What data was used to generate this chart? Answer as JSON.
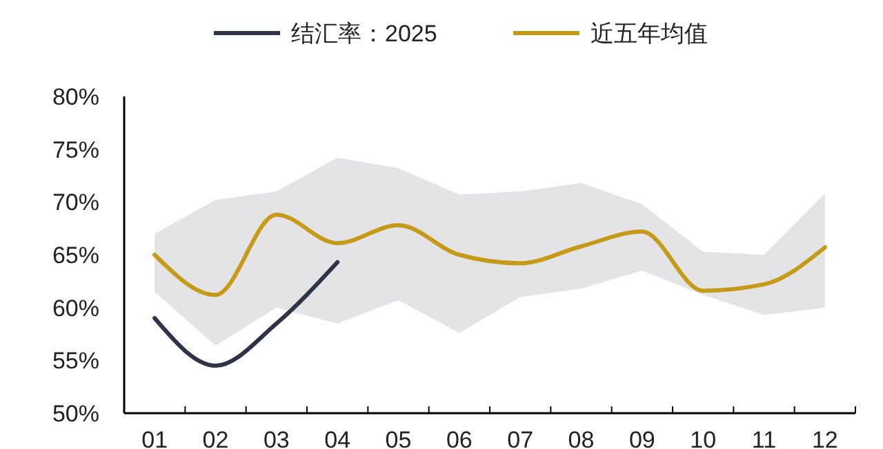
{
  "chart_data": {
    "type": "line",
    "categories": [
      "01",
      "02",
      "03",
      "04",
      "05",
      "06",
      "07",
      "08",
      "09",
      "10",
      "11",
      "12"
    ],
    "series": [
      {
        "name": "结汇率：2025",
        "color": "#2e3347",
        "values": [
          59,
          54.5,
          58.5,
          64.3,
          null,
          null,
          null,
          null,
          null,
          null,
          null,
          null
        ]
      },
      {
        "name": "近五年均值",
        "color": "#c49a16",
        "values": [
          65,
          61.2,
          68.8,
          66.1,
          67.8,
          65,
          64.2,
          65.8,
          67.2,
          61.6,
          62.2,
          65.7
        ],
        "lower": [
          61.5,
          56.4,
          60,
          58.5,
          60.7,
          57.6,
          61,
          61.8,
          63.5,
          61.2,
          59.3,
          60
        ],
        "upper": [
          67,
          70.2,
          71,
          74.2,
          73.2,
          70.7,
          71,
          71.8,
          69.8,
          65.3,
          65,
          70.8
        ]
      }
    ],
    "ylim": [
      50,
      80
    ],
    "yticks": [
      {
        "value": 50,
        "label": "50%"
      },
      {
        "value": 55,
        "label": "55%"
      },
      {
        "value": 60,
        "label": "60%"
      },
      {
        "value": 65,
        "label": "65%"
      },
      {
        "value": 70,
        "label": "70%"
      },
      {
        "value": 75,
        "label": "75%"
      },
      {
        "value": 80,
        "label": "80%"
      }
    ],
    "legend": "top",
    "grid": false,
    "marker": "none",
    "line_style": "solid"
  }
}
